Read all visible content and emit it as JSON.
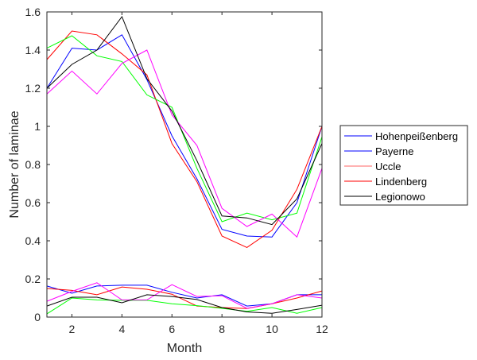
{
  "chart_data": {
    "type": "line",
    "title": "",
    "xlabel": "Month",
    "ylabel": "Number of laminae",
    "xlim": [
      1,
      12
    ],
    "ylim": [
      0,
      1.6
    ],
    "xticks": [
      2,
      4,
      6,
      8,
      10,
      12
    ],
    "xtick_labels": [
      "2",
      "4",
      "6",
      "8",
      "10",
      "12"
    ],
    "yticks": [
      0,
      0.2,
      0.4,
      0.6,
      0.8,
      1.0,
      1.2,
      1.4,
      1.6
    ],
    "ytick_labels": [
      "0",
      "0.2",
      "0.4",
      "0.6",
      "0.8",
      "1",
      "1.2",
      "1.4",
      "1.6"
    ],
    "grid": false,
    "legend_position": "right",
    "legend": [
      {
        "label": "Hohenpeißenberg",
        "color": "#0000ff"
      },
      {
        "label": "Payerne",
        "color": "#0000ff"
      },
      {
        "label": "Uccle",
        "color": "#ff6666"
      },
      {
        "label": "Lindenberg",
        "color": "#ff0000"
      },
      {
        "label": "Legionowo",
        "color": "#000000"
      }
    ],
    "x": [
      1,
      2,
      3,
      4,
      5,
      6,
      7,
      8,
      9,
      10,
      11,
      12
    ],
    "series": [
      {
        "name": "blue-upper",
        "color": "#0000ff",
        "values": [
          1.2,
          1.41,
          1.4,
          1.48,
          1.245,
          0.95,
          0.725,
          0.46,
          0.425,
          0.42,
          0.6,
          1.0
        ]
      },
      {
        "name": "red-upper",
        "color": "#ff0000",
        "values": [
          1.35,
          1.5,
          1.48,
          1.38,
          1.27,
          0.91,
          0.71,
          0.425,
          0.365,
          0.455,
          0.67,
          1.0
        ]
      },
      {
        "name": "green-upper",
        "color": "#00ff00",
        "values": [
          1.41,
          1.475,
          1.37,
          1.34,
          1.165,
          1.1,
          0.78,
          0.5,
          0.545,
          0.51,
          0.545,
          0.945
        ]
      },
      {
        "name": "magenta-upper",
        "color": "#ff00ff",
        "values": [
          1.17,
          1.29,
          1.17,
          1.33,
          1.4,
          1.06,
          0.9,
          0.57,
          0.475,
          0.54,
          0.42,
          0.78
        ]
      },
      {
        "name": "black-upper",
        "color": "#000000",
        "values": [
          1.2,
          1.325,
          1.4,
          1.575,
          1.25,
          1.08,
          0.82,
          0.53,
          0.52,
          0.485,
          0.62,
          0.91
        ]
      },
      {
        "name": "blue-lower",
        "color": "#0000ff",
        "values": [
          0.163,
          0.125,
          0.163,
          0.167,
          0.167,
          0.13,
          0.1,
          0.117,
          0.058,
          0.07,
          0.117,
          0.117
        ]
      },
      {
        "name": "red-lower",
        "color": "#ff0000",
        "values": [
          0.15,
          0.14,
          0.117,
          0.158,
          0.146,
          0.12,
          0.058,
          0.05,
          0.045,
          0.07,
          0.1,
          0.137
        ]
      },
      {
        "name": "green-lower",
        "color": "#00ff00",
        "values": [
          0.017,
          0.1,
          0.09,
          0.088,
          0.088,
          0.07,
          0.06,
          0.046,
          0.03,
          0.05,
          0.02,
          0.05
        ]
      },
      {
        "name": "magenta-lower",
        "color": "#ff00ff",
        "values": [
          0.083,
          0.135,
          0.18,
          0.09,
          0.09,
          0.17,
          0.108,
          0.112,
          0.046,
          0.07,
          0.117,
          0.1
        ]
      },
      {
        "name": "black-lower",
        "color": "#000000",
        "values": [
          0.058,
          0.104,
          0.104,
          0.075,
          0.117,
          0.108,
          0.092,
          0.05,
          0.027,
          0.02,
          0.04,
          0.062
        ]
      }
    ]
  }
}
